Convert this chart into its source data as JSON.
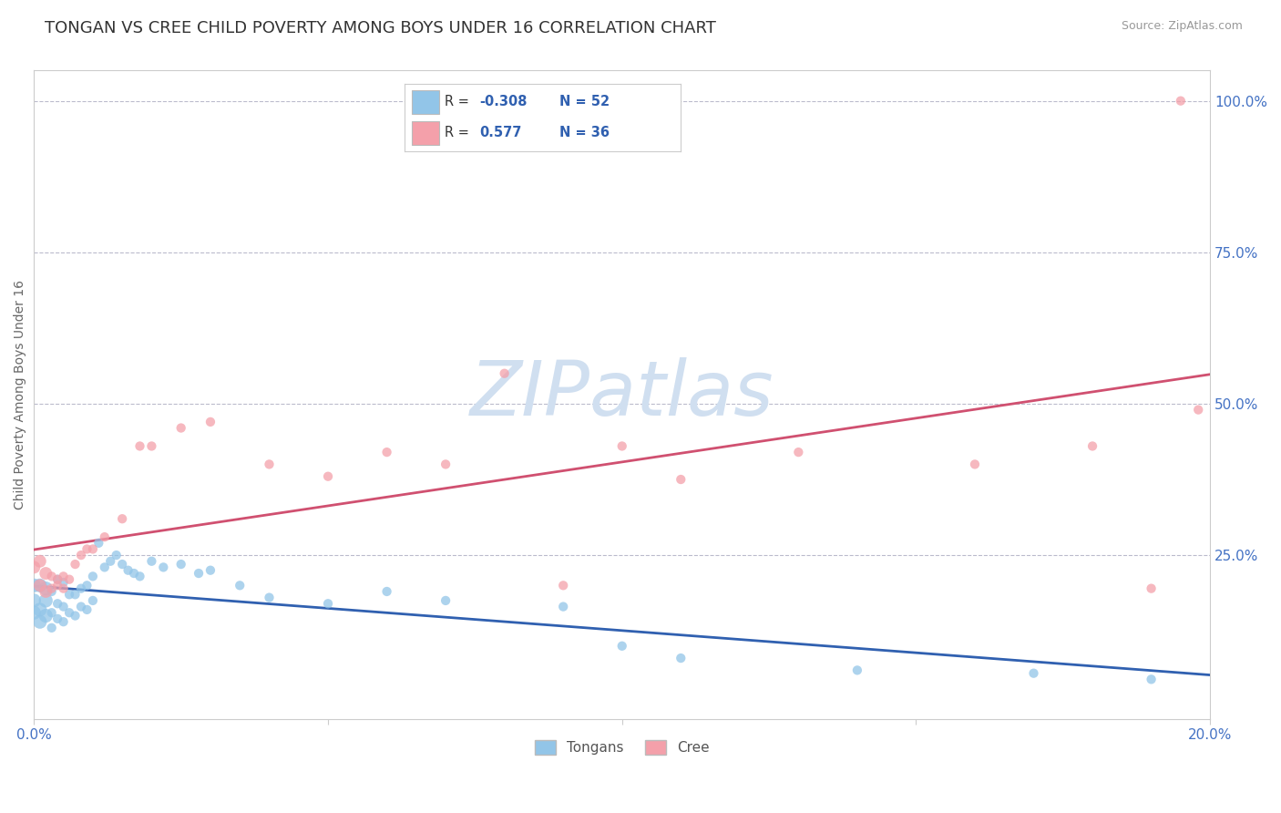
{
  "title": "TONGAN VS CREE CHILD POVERTY AMONG BOYS UNDER 16 CORRELATION CHART",
  "source": "Source: ZipAtlas.com",
  "ylabel": "Child Poverty Among Boys Under 16",
  "xlim": [
    0.0,
    0.2
  ],
  "ylim": [
    -0.02,
    1.05
  ],
  "yticks_right": [
    0.25,
    0.5,
    0.75,
    1.0
  ],
  "ytick_labels_right": [
    "25.0%",
    "50.0%",
    "75.0%",
    "100.0%"
  ],
  "tongan_color": "#92C5E8",
  "cree_color": "#F4A0AA",
  "tongan_line_color": "#3060B0",
  "cree_line_color": "#D05070",
  "watermark": "ZIPatlas",
  "watermark_color": "#D0DFF0",
  "legend_R_tongan": "-0.308",
  "legend_N_tongan": "52",
  "legend_R_cree": "0.577",
  "legend_N_cree": "36",
  "legend_label_tongan": "Tongans",
  "legend_label_cree": "Cree",
  "title_fontsize": 13,
  "axis_label_fontsize": 10,
  "tick_fontsize": 11,
  "tongan_x": [
    0.0,
    0.0,
    0.0,
    0.001,
    0.001,
    0.001,
    0.002,
    0.002,
    0.002,
    0.003,
    0.003,
    0.003,
    0.004,
    0.004,
    0.004,
    0.005,
    0.005,
    0.005,
    0.006,
    0.006,
    0.007,
    0.007,
    0.008,
    0.008,
    0.009,
    0.009,
    0.01,
    0.01,
    0.011,
    0.012,
    0.013,
    0.014,
    0.015,
    0.016,
    0.017,
    0.018,
    0.02,
    0.022,
    0.025,
    0.028,
    0.03,
    0.035,
    0.04,
    0.05,
    0.06,
    0.07,
    0.09,
    0.1,
    0.11,
    0.14,
    0.17,
    0.19
  ],
  "tongan_y": [
    0.155,
    0.175,
    0.2,
    0.14,
    0.16,
    0.2,
    0.15,
    0.175,
    0.195,
    0.13,
    0.155,
    0.19,
    0.145,
    0.17,
    0.21,
    0.14,
    0.165,
    0.205,
    0.155,
    0.185,
    0.15,
    0.185,
    0.165,
    0.195,
    0.16,
    0.2,
    0.175,
    0.215,
    0.27,
    0.23,
    0.24,
    0.25,
    0.235,
    0.225,
    0.22,
    0.215,
    0.24,
    0.23,
    0.235,
    0.22,
    0.225,
    0.2,
    0.18,
    0.17,
    0.19,
    0.175,
    0.165,
    0.1,
    0.08,
    0.06,
    0.055,
    0.045
  ],
  "cree_x": [
    0.0,
    0.001,
    0.001,
    0.002,
    0.002,
    0.003,
    0.003,
    0.004,
    0.004,
    0.005,
    0.005,
    0.006,
    0.007,
    0.008,
    0.009,
    0.01,
    0.012,
    0.015,
    0.018,
    0.02,
    0.025,
    0.03,
    0.04,
    0.05,
    0.06,
    0.07,
    0.08,
    0.09,
    0.1,
    0.11,
    0.13,
    0.16,
    0.18,
    0.19,
    0.195,
    0.198
  ],
  "cree_y": [
    0.23,
    0.2,
    0.24,
    0.19,
    0.22,
    0.195,
    0.215,
    0.2,
    0.21,
    0.195,
    0.215,
    0.21,
    0.235,
    0.25,
    0.26,
    0.26,
    0.28,
    0.31,
    0.43,
    0.43,
    0.46,
    0.47,
    0.4,
    0.38,
    0.42,
    0.4,
    0.55,
    0.2,
    0.43,
    0.375,
    0.42,
    0.4,
    0.43,
    0.195,
    1.0,
    0.49
  ]
}
